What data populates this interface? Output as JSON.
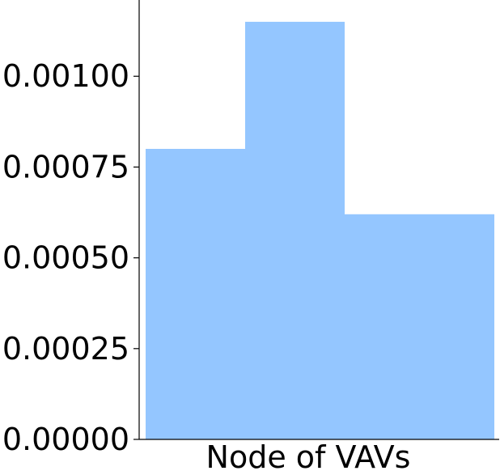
{
  "chart_data": {
    "type": "bar",
    "title": "",
    "xlabel": "Node of VAVs",
    "ylabel": "",
    "bins": [
      {
        "value": 0.0008
      },
      {
        "value": 0.00115
      },
      {
        "value": 0.00062
      }
    ],
    "ylim": [
      0,
      0.00121
    ],
    "yticks": [
      {
        "value": 0,
        "label": "0.00000"
      },
      {
        "value": 0.00025,
        "label": "0.00025"
      },
      {
        "value": 0.0005,
        "label": "0.00050"
      },
      {
        "value": 0.00075,
        "label": "0.00075"
      },
      {
        "value": 0.001,
        "label": "0.00100"
      }
    ],
    "grid": false,
    "bar_color": "#94c6ff",
    "axis_color": "#000000"
  }
}
